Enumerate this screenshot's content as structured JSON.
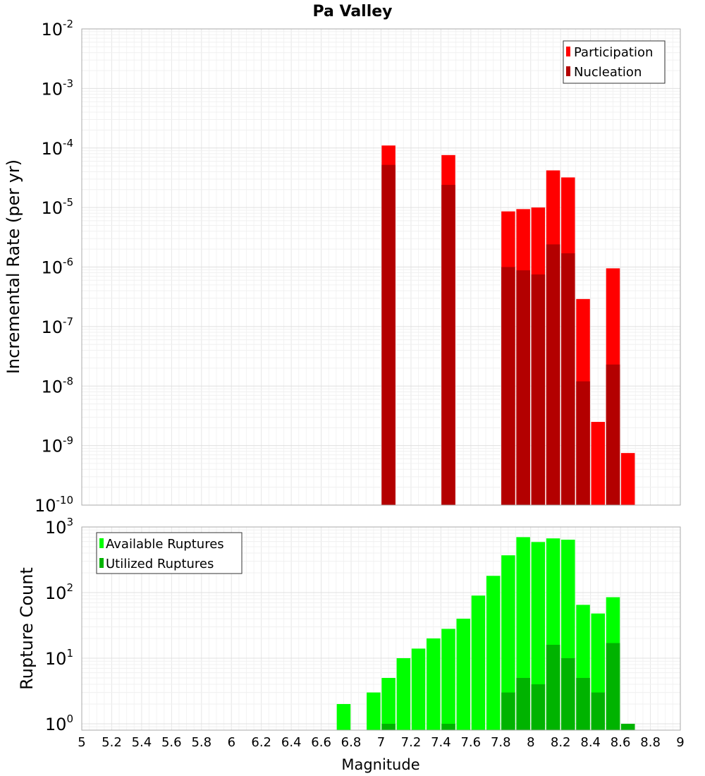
{
  "chart_data": [
    {
      "type": "bar",
      "panel": "top",
      "title": "Pa Valley",
      "ylabel": "Incremental Rate (per yr)",
      "xlabel": "",
      "xlim": [
        5,
        9
      ],
      "ylim": [
        1e-10,
        0.01
      ],
      "yscale": "log",
      "grid": true,
      "legend_position": "top-right",
      "yticks": [
        {
          "base": "10",
          "exp": "-2"
        },
        {
          "base": "10",
          "exp": "-3"
        },
        {
          "base": "10",
          "exp": "-4"
        },
        {
          "base": "10",
          "exp": "-5"
        },
        {
          "base": "10",
          "exp": "-6"
        },
        {
          "base": "10",
          "exp": "-7"
        },
        {
          "base": "10",
          "exp": "-8"
        },
        {
          "base": "10",
          "exp": "-9"
        },
        {
          "base": "10",
          "exp": "-10"
        }
      ],
      "series": [
        {
          "name": "Participation",
          "color": "#ff0000",
          "points": [
            {
              "x": 7.05,
              "y": 0.00011
            },
            {
              "x": 7.45,
              "y": 7.6e-05
            },
            {
              "x": 7.85,
              "y": 8.6e-06
            },
            {
              "x": 7.95,
              "y": 9.4e-06
            },
            {
              "x": 8.05,
              "y": 1e-05
            },
            {
              "x": 8.15,
              "y": 4.2e-05
            },
            {
              "x": 8.25,
              "y": 3.2e-05
            },
            {
              "x": 8.35,
              "y": 2.9e-07
            },
            {
              "x": 8.45,
              "y": 2.5e-09
            },
            {
              "x": 8.55,
              "y": 9.5e-07
            },
            {
              "x": 8.65,
              "y": 7.5e-10
            }
          ]
        },
        {
          "name": "Nucleation",
          "color": "#b30000",
          "points": [
            {
              "x": 7.05,
              "y": 5.2e-05
            },
            {
              "x": 7.45,
              "y": 2.4e-05
            },
            {
              "x": 7.85,
              "y": 1e-06
            },
            {
              "x": 7.95,
              "y": 8.8e-07
            },
            {
              "x": 8.05,
              "y": 7.5e-07
            },
            {
              "x": 8.15,
              "y": 2.4e-06
            },
            {
              "x": 8.25,
              "y": 1.7e-06
            },
            {
              "x": 8.35,
              "y": 1.2e-08
            },
            {
              "x": 8.55,
              "y": 2.3e-08
            }
          ]
        }
      ]
    },
    {
      "type": "bar",
      "panel": "bottom",
      "title": "",
      "ylabel": "Rupture Count",
      "xlabel": "Magnitude",
      "xlim": [
        5,
        9
      ],
      "ylim": [
        0.8,
        1000
      ],
      "yscale": "log",
      "grid": true,
      "legend_position": "top-left",
      "xticks": [
        "5",
        "5.2",
        "5.4",
        "5.6",
        "5.8",
        "6",
        "6.2",
        "6.4",
        "6.6",
        "6.8",
        "7",
        "7.2",
        "7.4",
        "7.6",
        "7.8",
        "8",
        "8.2",
        "8.4",
        "8.6",
        "8.8",
        "9"
      ],
      "yticks": [
        {
          "base": "10",
          "exp": "3"
        },
        {
          "base": "10",
          "exp": "2"
        },
        {
          "base": "10",
          "exp": "1"
        },
        {
          "base": "10",
          "exp": "0"
        }
      ],
      "series": [
        {
          "name": "Available Ruptures",
          "color": "#00ff00",
          "points": [
            {
              "x": 6.75,
              "y": 2
            },
            {
              "x": 6.95,
              "y": 3
            },
            {
              "x": 7.05,
              "y": 5
            },
            {
              "x": 7.15,
              "y": 10
            },
            {
              "x": 7.25,
              "y": 14
            },
            {
              "x": 7.35,
              "y": 20
            },
            {
              "x": 7.45,
              "y": 28
            },
            {
              "x": 7.55,
              "y": 40
            },
            {
              "x": 7.65,
              "y": 90
            },
            {
              "x": 7.75,
              "y": 180
            },
            {
              "x": 7.85,
              "y": 370
            },
            {
              "x": 7.95,
              "y": 700
            },
            {
              "x": 8.05,
              "y": 590
            },
            {
              "x": 8.15,
              "y": 670
            },
            {
              "x": 8.25,
              "y": 640
            },
            {
              "x": 8.35,
              "y": 65
            },
            {
              "x": 8.45,
              "y": 48
            },
            {
              "x": 8.55,
              "y": 85
            },
            {
              "x": 8.65,
              "y": 1
            }
          ]
        },
        {
          "name": "Utilized Ruptures",
          "color": "#00b300",
          "points": [
            {
              "x": 7.05,
              "y": 1
            },
            {
              "x": 7.45,
              "y": 1
            },
            {
              "x": 7.85,
              "y": 3
            },
            {
              "x": 7.95,
              "y": 5
            },
            {
              "x": 8.05,
              "y": 4
            },
            {
              "x": 8.15,
              "y": 16
            },
            {
              "x": 8.25,
              "y": 10
            },
            {
              "x": 8.35,
              "y": 5
            },
            {
              "x": 8.45,
              "y": 3
            },
            {
              "x": 8.55,
              "y": 17
            },
            {
              "x": 8.65,
              "y": 1
            }
          ]
        }
      ]
    }
  ]
}
